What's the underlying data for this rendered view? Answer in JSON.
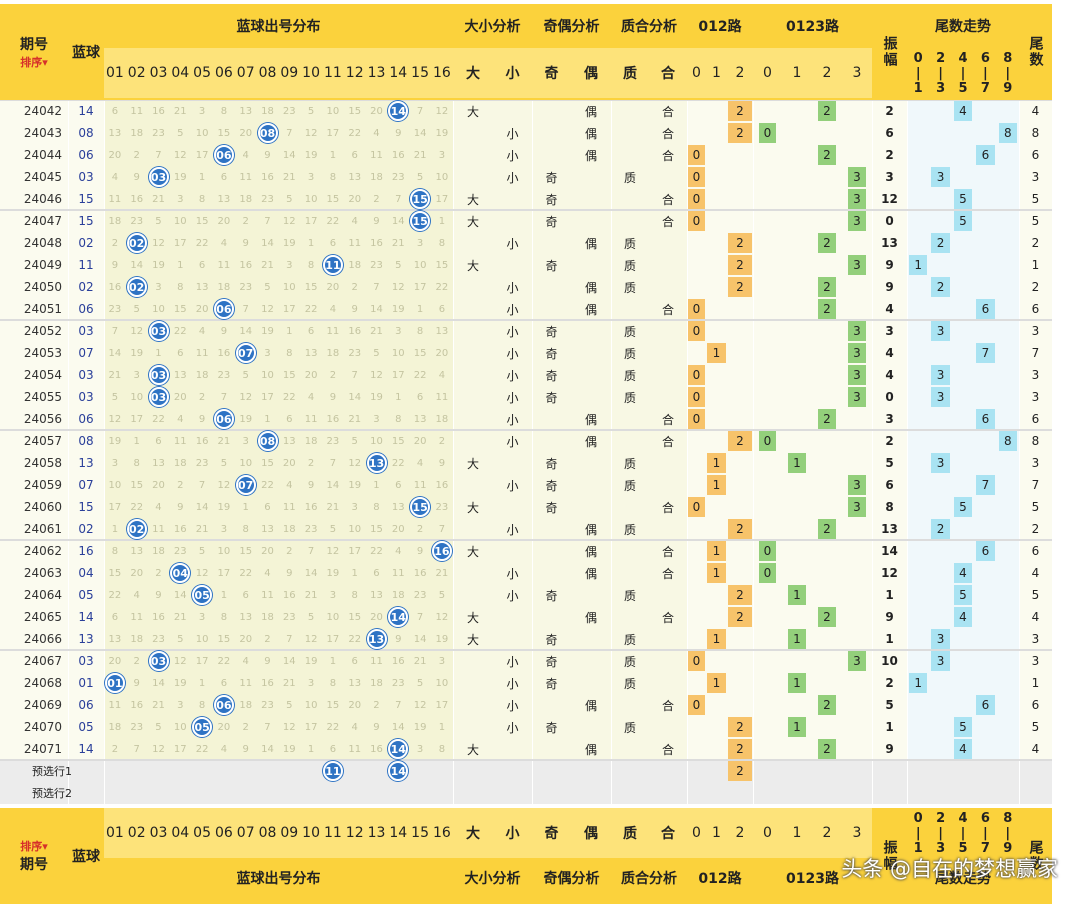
{
  "header": {
    "period_label": "期号",
    "sort_label": "排序",
    "blue_label": "蓝球",
    "dist_label": "蓝球出号分布",
    "bigsmall_label": "大小分析",
    "oddeven_label": "奇偶分析",
    "primecomp_label": "质合分析",
    "r012_label": "012路",
    "r0123_label": "0123路",
    "amp_label": "振幅",
    "tail_trend_label": "尾数走势",
    "tail_label": "尾数",
    "numbers": [
      "01",
      "02",
      "03",
      "04",
      "05",
      "06",
      "07",
      "08",
      "09",
      "10",
      "11",
      "12",
      "13",
      "14",
      "15",
      "16"
    ],
    "big": "大",
    "small": "小",
    "odd": "奇",
    "even": "偶",
    "prime": "质",
    "comp": "合",
    "r012": [
      "0",
      "1",
      "2"
    ],
    "r0123": [
      "0",
      "1",
      "2",
      "3"
    ],
    "tail_groups": [
      [
        "0",
        "1"
      ],
      [
        "2",
        "3"
      ],
      [
        "4",
        "5"
      ],
      [
        "6",
        "7"
      ],
      [
        "8",
        "9"
      ]
    ]
  },
  "rows": [
    {
      "period": "24042",
      "blue": "14",
      "bs": "大",
      "oe": "偶",
      "pc": "合",
      "r3": "2",
      "r4": "2",
      "amp": "2",
      "tg": 2,
      "tail": "4"
    },
    {
      "period": "24043",
      "blue": "08",
      "bs": "小",
      "oe": "偶",
      "pc": "合",
      "r3": "2",
      "r4": "0",
      "amp": "6",
      "tg": 4,
      "tail": "8"
    },
    {
      "period": "24044",
      "blue": "06",
      "bs": "小",
      "oe": "偶",
      "pc": "合",
      "r3": "0",
      "r4": "2",
      "amp": "2",
      "tg": 3,
      "tail": "6"
    },
    {
      "period": "24045",
      "blue": "03",
      "bs": "小",
      "oe": "奇",
      "pc": "质",
      "r3": "0",
      "r4": "3",
      "amp": "3",
      "tg": 1,
      "tail": "3"
    },
    {
      "period": "24046",
      "blue": "15",
      "bs": "大",
      "oe": "奇",
      "pc": "合",
      "r3": "0",
      "r4": "3",
      "amp": "12",
      "tg": 2,
      "tail": "5"
    },
    {
      "period": "24047",
      "blue": "15",
      "bs": "大",
      "oe": "奇",
      "pc": "合",
      "r3": "0",
      "r4": "3",
      "amp": "0",
      "tg": 2,
      "tail": "5"
    },
    {
      "period": "24048",
      "blue": "02",
      "bs": "小",
      "oe": "偶",
      "pc": "质",
      "r3": "2",
      "r4": "2",
      "amp": "13",
      "tg": 1,
      "tail": "2"
    },
    {
      "period": "24049",
      "blue": "11",
      "bs": "大",
      "oe": "奇",
      "pc": "质",
      "r3": "2",
      "r4": "3",
      "amp": "9",
      "tg": 0,
      "tail": "1"
    },
    {
      "period": "24050",
      "blue": "02",
      "bs": "小",
      "oe": "偶",
      "pc": "质",
      "r3": "2",
      "r4": "2",
      "amp": "9",
      "tg": 1,
      "tail": "2"
    },
    {
      "period": "24051",
      "blue": "06",
      "bs": "小",
      "oe": "偶",
      "pc": "合",
      "r3": "0",
      "r4": "2",
      "amp": "4",
      "tg": 3,
      "tail": "6"
    },
    {
      "period": "24052",
      "blue": "03",
      "bs": "小",
      "oe": "奇",
      "pc": "质",
      "r3": "0",
      "r4": "3",
      "amp": "3",
      "tg": 1,
      "tail": "3"
    },
    {
      "period": "24053",
      "blue": "07",
      "bs": "小",
      "oe": "奇",
      "pc": "质",
      "r3": "1",
      "r4": "3",
      "amp": "4",
      "tg": 3,
      "tail": "7"
    },
    {
      "period": "24054",
      "blue": "03",
      "bs": "小",
      "oe": "奇",
      "pc": "质",
      "r3": "0",
      "r4": "3",
      "amp": "4",
      "tg": 1,
      "tail": "3"
    },
    {
      "period": "24055",
      "blue": "03",
      "bs": "小",
      "oe": "奇",
      "pc": "质",
      "r3": "0",
      "r4": "3",
      "amp": "0",
      "tg": 1,
      "tail": "3"
    },
    {
      "period": "24056",
      "blue": "06",
      "bs": "小",
      "oe": "偶",
      "pc": "合",
      "r3": "0",
      "r4": "2",
      "amp": "3",
      "tg": 3,
      "tail": "6"
    },
    {
      "period": "24057",
      "blue": "08",
      "bs": "小",
      "oe": "偶",
      "pc": "合",
      "r3": "2",
      "r4": "0",
      "amp": "2",
      "tg": 4,
      "tail": "8"
    },
    {
      "period": "24058",
      "blue": "13",
      "bs": "大",
      "oe": "奇",
      "pc": "质",
      "r3": "1",
      "r4": "1",
      "amp": "5",
      "tg": 1,
      "tail": "3"
    },
    {
      "period": "24059",
      "blue": "07",
      "bs": "小",
      "oe": "奇",
      "pc": "质",
      "r3": "1",
      "r4": "3",
      "amp": "6",
      "tg": 3,
      "tail": "7"
    },
    {
      "period": "24060",
      "blue": "15",
      "bs": "大",
      "oe": "奇",
      "pc": "合",
      "r3": "0",
      "r4": "3",
      "amp": "8",
      "tg": 2,
      "tail": "5"
    },
    {
      "period": "24061",
      "blue": "02",
      "bs": "小",
      "oe": "偶",
      "pc": "质",
      "r3": "2",
      "r4": "2",
      "amp": "13",
      "tg": 1,
      "tail": "2"
    },
    {
      "period": "24062",
      "blue": "16",
      "bs": "大",
      "oe": "偶",
      "pc": "合",
      "r3": "1",
      "r4": "0",
      "amp": "14",
      "tg": 3,
      "tail": "6"
    },
    {
      "period": "24063",
      "blue": "04",
      "bs": "小",
      "oe": "偶",
      "pc": "合",
      "r3": "1",
      "r4": "0",
      "amp": "12",
      "tg": 2,
      "tail": "4"
    },
    {
      "period": "24064",
      "blue": "05",
      "bs": "小",
      "oe": "奇",
      "pc": "质",
      "r3": "2",
      "r4": "1",
      "amp": "1",
      "tg": 2,
      "tail": "5"
    },
    {
      "period": "24065",
      "blue": "14",
      "bs": "大",
      "oe": "偶",
      "pc": "合",
      "r3": "2",
      "r4": "2",
      "amp": "9",
      "tg": 2,
      "tail": "4"
    },
    {
      "period": "24066",
      "blue": "13",
      "bs": "大",
      "oe": "奇",
      "pc": "质",
      "r3": "1",
      "r4": "1",
      "amp": "1",
      "tg": 1,
      "tail": "3"
    },
    {
      "period": "24067",
      "blue": "03",
      "bs": "小",
      "oe": "奇",
      "pc": "质",
      "r3": "0",
      "r4": "3",
      "amp": "10",
      "tg": 1,
      "tail": "3"
    },
    {
      "period": "24068",
      "blue": "01",
      "bs": "小",
      "oe": "奇",
      "pc": "质",
      "r3": "1",
      "r4": "1",
      "amp": "2",
      "tg": 0,
      "tail": "1"
    },
    {
      "period": "24069",
      "blue": "06",
      "bs": "小",
      "oe": "偶",
      "pc": "合",
      "r3": "0",
      "r4": "2",
      "amp": "5",
      "tg": 3,
      "tail": "6"
    },
    {
      "period": "24070",
      "blue": "05",
      "bs": "小",
      "oe": "奇",
      "pc": "质",
      "r3": "2",
      "r4": "1",
      "amp": "1",
      "tg": 2,
      "tail": "5"
    },
    {
      "period": "24071",
      "blue": "14",
      "bs": "大",
      "oe": "偶",
      "pc": "合",
      "r3": "2",
      "r4": "2",
      "amp": "9",
      "tg": 2,
      "tail": "4"
    }
  ],
  "preselect": [
    {
      "label": "预选行1",
      "balls": [
        "11",
        "14"
      ],
      "r3": "2"
    },
    {
      "label": "预选行2",
      "balls": [],
      "r3": ""
    }
  ],
  "colors": {
    "header": "#fbd23c",
    "accent_blue": "#2e73c4",
    "hl_orange": "#f7c36a",
    "hl_green": "#93cf7b",
    "hl_cyan": "#a9e3f2"
  },
  "watermark": "头条 @自在的梦想赢家",
  "chart_data": {
    "type": "line",
    "title": "蓝球出号分布",
    "categories": [
      "24042",
      "24043",
      "24044",
      "24045",
      "24046",
      "24047",
      "24048",
      "24049",
      "24050",
      "24051",
      "24052",
      "24053",
      "24054",
      "24055",
      "24056",
      "24057",
      "24058",
      "24059",
      "24060",
      "24061",
      "24062",
      "24063",
      "24064",
      "24065",
      "24066",
      "24067",
      "24068",
      "24069",
      "24070",
      "24071"
    ],
    "series": [
      {
        "name": "蓝球",
        "values": [
          14,
          8,
          6,
          3,
          15,
          15,
          2,
          11,
          2,
          6,
          3,
          7,
          3,
          3,
          6,
          8,
          13,
          7,
          15,
          2,
          16,
          4,
          5,
          14,
          13,
          3,
          1,
          6,
          5,
          14
        ]
      }
    ],
    "ylim": [
      1,
      16
    ]
  }
}
